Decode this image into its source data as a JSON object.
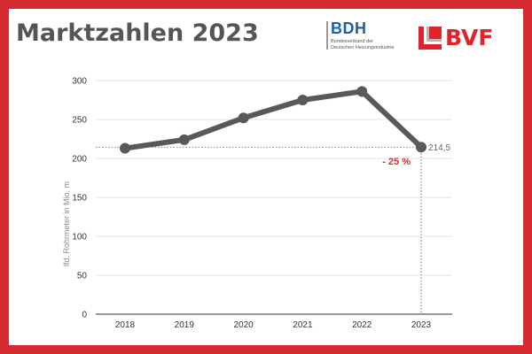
{
  "header": {
    "title": "Marktzahlen 2023"
  },
  "logos": {
    "bdh": {
      "name": "BDH",
      "subline_1": "Bundesverband der",
      "subline_2": "Deutschen Heizungsindustrie"
    },
    "bvf": {
      "name": "BVF"
    }
  },
  "colors": {
    "frame": "#d52b30",
    "line": "#595959",
    "accent": "#d52b30",
    "bdh_blue": "#1f5ea8"
  },
  "chart_data": {
    "type": "line",
    "title": "",
    "xlabel": "",
    "ylabel": "lfd. Rohrmeter in Mio. m",
    "categories": [
      "2018",
      "2019",
      "2020",
      "2021",
      "2022",
      "2023"
    ],
    "series": [
      {
        "values": [
          213,
          224,
          252,
          275,
          286,
          214.5
        ]
      }
    ],
    "ylim": [
      0,
      300
    ],
    "yticks": [
      0,
      50,
      100,
      150,
      200,
      250,
      300
    ],
    "grid": true,
    "legend": "none",
    "annotations": {
      "end_value_label": "214,5",
      "change_label": "- 25 %"
    }
  }
}
